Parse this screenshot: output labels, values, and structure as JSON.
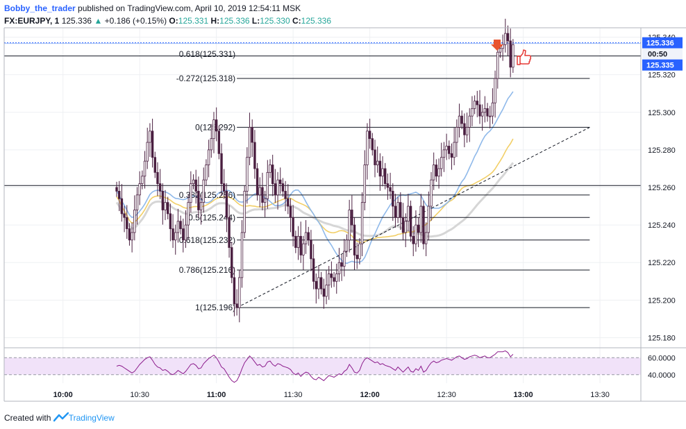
{
  "header": {
    "author": "Bobby_the_trader",
    "published": "published on TradingView.com, April 10, 2019 12:54:11 MSK"
  },
  "symbol_bar": {
    "symbol": "FX:EURJPY, 1",
    "last": "125.336",
    "change": "+0.186 (+0.15%)",
    "open_label": "O:",
    "open": "125.331",
    "high_label": "H:",
    "high": "125.336",
    "low_label": "L:",
    "low": "125.330",
    "close_label": "C:",
    "close": "125.336"
  },
  "price_tags": {
    "last_price": "125.336",
    "countdown": "00:50",
    "bid": "125.335"
  },
  "footer": {
    "created_with": "Created with",
    "brand": "TradingView"
  },
  "colors": {
    "ma_fast": "#8fb9ea",
    "ma_mid": "#f2cf67",
    "ma_slow": "#d6d6d6",
    "candle": "#4a1f40",
    "rsi": "#8b1a8b",
    "rsi_band": "#f1e2f9",
    "price_line": "#2962ff",
    "sell_arrow": "#e8532f",
    "thumb": "#e53935"
  },
  "chart_data": {
    "type": "candlestick",
    "ylim": [
      125.175,
      125.345
    ],
    "y_ticks": [
      "125.340",
      "125.320",
      "125.300",
      "125.280",
      "125.260",
      "125.240",
      "125.220",
      "125.200",
      "125.180"
    ],
    "x_ticks": [
      "10:00",
      "10:30",
      "11:00",
      "11:30",
      "12:00",
      "12:30",
      "13:00",
      "13:30"
    ],
    "x_tick_minutes": [
      600,
      630,
      660,
      690,
      720,
      750,
      780,
      810
    ],
    "xlim_minutes": [
      577,
      826
    ],
    "last_bar_minute": 776,
    "fib_levels": [
      {
        "label": "0.618(125.331)",
        "price": 125.331
      },
      {
        "label": "-0.272(125.318)",
        "price": 125.318
      },
      {
        "label": "0(125.292)",
        "price": 125.292
      },
      {
        "label": "0.382(125.256)",
        "price": 125.256
      },
      {
        "label": "0.5(125.244)",
        "price": 125.244
      },
      {
        "label": "0.618(125.232)",
        "price": 125.232
      },
      {
        "label": "0.786(125.216)",
        "price": 125.216
      },
      {
        "label": "1(125.196)",
        "price": 125.196
      }
    ],
    "horizontal_lines": [
      125.337,
      125.33,
      125.261
    ],
    "trendline": {
      "from": [
        668,
        125.196
      ],
      "to": [
        806,
        125.292
      ]
    },
    "closes": [
      125.258,
      125.254,
      125.246,
      125.244,
      125.238,
      125.232,
      125.236,
      125.248,
      125.256,
      125.262,
      125.266,
      125.274,
      125.284,
      125.29,
      125.276,
      125.268,
      125.262,
      125.258,
      125.248,
      125.252,
      125.246,
      125.238,
      125.232,
      125.236,
      125.242,
      125.238,
      125.232,
      125.24,
      125.252,
      125.262,
      125.264,
      125.258,
      125.248,
      125.252,
      125.264,
      125.272,
      125.28,
      125.286,
      125.296,
      125.29,
      125.278,
      125.262,
      125.258,
      125.244,
      125.228,
      125.212,
      125.198,
      125.196,
      125.212,
      125.236,
      125.258,
      125.276,
      125.292,
      125.284,
      125.27,
      125.256,
      125.26,
      125.252,
      125.254,
      125.268,
      125.272,
      125.262,
      125.256,
      125.264,
      125.262,
      125.258,
      125.254,
      125.25,
      125.244,
      125.234,
      125.228,
      125.234,
      125.224,
      125.23,
      125.236,
      125.232,
      125.222,
      125.21,
      125.206,
      125.212,
      125.206,
      125.202,
      125.208,
      125.214,
      125.212,
      125.21,
      125.214,
      125.22,
      125.218,
      125.226,
      125.232,
      125.248,
      125.24,
      125.224,
      125.222,
      125.23,
      125.252,
      125.272,
      125.29,
      125.286,
      125.28,
      125.272,
      125.274,
      125.266,
      125.27,
      125.262,
      125.26,
      125.258,
      125.25,
      125.244,
      125.252,
      125.244,
      125.236,
      125.242,
      125.25,
      125.234,
      125.23,
      125.24,
      125.236,
      125.25,
      125.23,
      125.236,
      125.25,
      125.264,
      125.272,
      125.266,
      125.27,
      125.276,
      125.28,
      125.282,
      125.278,
      125.276,
      125.284,
      125.292,
      125.298,
      125.294,
      125.288,
      125.292,
      125.298,
      125.302,
      125.306,
      125.304,
      125.298,
      125.3,
      125.302,
      125.298,
      125.298,
      125.305,
      125.318,
      125.332,
      125.334,
      125.336,
      125.342,
      125.338,
      125.324,
      125.336
    ],
    "rsi": {
      "levels": [
        "60.0000",
        "40.0000"
      ],
      "ylim": [
        30,
        70
      ],
      "values": [
        50,
        51,
        50,
        48,
        46,
        44,
        42,
        44,
        48,
        52,
        55,
        58,
        60,
        61,
        57,
        52,
        49,
        48,
        45,
        46,
        44,
        41,
        40,
        42,
        45,
        43,
        41,
        44,
        48,
        52,
        53,
        51,
        47,
        48,
        53,
        56,
        59,
        61,
        63,
        60,
        55,
        49,
        47,
        42,
        37,
        33,
        31,
        33,
        39,
        47,
        54,
        58,
        62,
        59,
        55,
        51,
        52,
        49,
        50,
        55,
        56,
        52,
        50,
        53,
        52,
        50,
        49,
        48,
        46,
        42,
        40,
        42,
        38,
        41,
        43,
        42,
        38,
        35,
        34,
        37,
        35,
        33,
        36,
        39,
        38,
        37,
        39,
        41,
        40,
        44,
        46,
        52,
        48,
        43,
        42,
        45,
        53,
        58,
        60,
        58,
        56,
        54,
        55,
        52,
        53,
        51,
        50,
        49,
        47,
        45,
        49,
        46,
        43,
        46,
        49,
        44,
        43,
        47,
        45,
        50,
        43,
        45,
        50,
        54,
        56,
        54,
        55,
        57,
        58,
        59,
        58,
        57,
        59,
        61,
        62,
        60,
        58,
        59,
        61,
        62,
        63,
        62,
        60,
        61,
        62,
        60,
        60,
        62,
        64,
        67,
        67,
        67,
        68,
        66,
        61,
        64
      ]
    }
  }
}
